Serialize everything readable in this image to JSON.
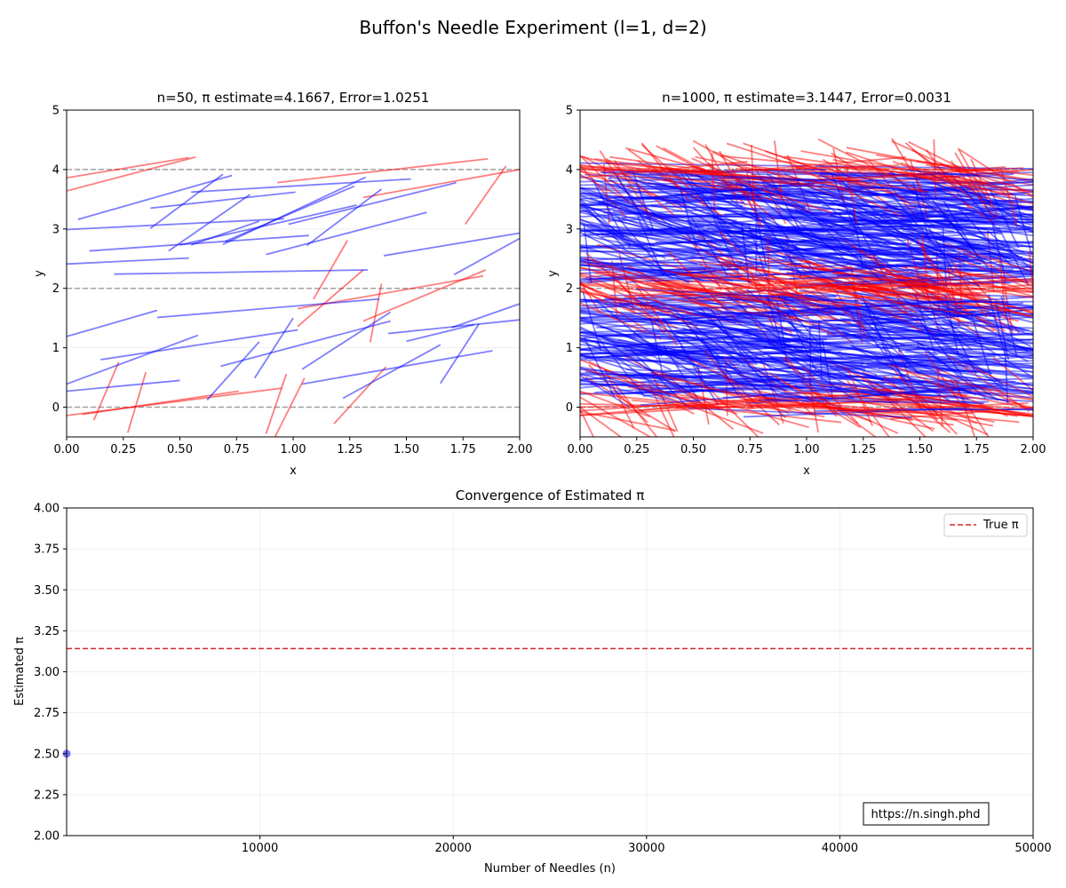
{
  "figure": {
    "title": "Buffon's Needle Experiment (l=1, d=2)"
  },
  "colors": {
    "crossing": "#ff0000",
    "non_crossing": "#0000ff",
    "grid_line": "#808080",
    "true_pi": "#d62728",
    "estimate_marker": "#6666ff"
  },
  "watermark": "https://n.singh.phd",
  "chart_data": [
    {
      "type": "line",
      "title": "n=50, π estimate=4.1667, Error=1.0251",
      "xlabel": "x",
      "ylabel": "y",
      "xlim": [
        0,
        2
      ],
      "ylim": [
        -0.5,
        5
      ],
      "xticks": [
        "0.00",
        "0.25",
        "0.50",
        "0.75",
        "1.00",
        "1.25",
        "1.50",
        "1.75",
        "2.00"
      ],
      "yticks": [
        "0",
        "1",
        "2",
        "3",
        "4",
        "5"
      ],
      "grid": true,
      "parallel_lines": [
        0,
        2,
        4
      ],
      "needle_length": 1,
      "needles": [
        [
          0.0,
          3.64,
          0.57,
          4.21
        ],
        [
          0.0,
          3.86,
          0.54,
          4.2
        ],
        [
          0.93,
          3.78,
          1.86,
          4.18
        ],
        [
          1.31,
          3.53,
          2.0,
          4.0
        ],
        [
          1.76,
          3.08,
          1.94,
          4.06
        ],
        [
          0.07,
          -0.12,
          0.76,
          0.27
        ],
        [
          0.12,
          -0.22,
          0.23,
          0.76
        ],
        [
          0.27,
          -0.43,
          0.35,
          0.59
        ],
        [
          0.0,
          -0.14,
          0.95,
          0.32
        ],
        [
          0.88,
          -0.45,
          0.97,
          0.56
        ],
        [
          0.92,
          -0.5,
          1.05,
          0.49
        ],
        [
          1.18,
          -0.28,
          1.41,
          0.68
        ],
        [
          1.09,
          1.82,
          1.24,
          2.81
        ],
        [
          1.02,
          1.36,
          1.31,
          2.31
        ],
        [
          1.34,
          1.09,
          1.39,
          2.08
        ],
        [
          1.02,
          1.66,
          1.84,
          2.21
        ],
        [
          1.31,
          1.45,
          1.85,
          2.31
        ],
        [
          0.05,
          3.16,
          0.73,
          3.9
        ],
        [
          0.37,
          3.35,
          1.01,
          3.62
        ],
        [
          0.55,
          3.62,
          1.52,
          3.84
        ],
        [
          0.37,
          3.01,
          0.69,
          3.92
        ],
        [
          0.45,
          2.63,
          0.81,
          3.58
        ],
        [
          0.0,
          2.99,
          0.96,
          3.17
        ],
        [
          0.69,
          2.74,
          1.32,
          3.87
        ],
        [
          0.7,
          2.79,
          1.27,
          3.72
        ],
        [
          1.06,
          2.72,
          1.39,
          3.67
        ],
        [
          0.98,
          3.08,
          1.72,
          3.78
        ],
        [
          0.55,
          2.73,
          0.85,
          3.13
        ],
        [
          0.5,
          2.73,
          1.28,
          3.4
        ],
        [
          0.1,
          2.63,
          1.07,
          2.89
        ],
        [
          0.0,
          2.41,
          0.54,
          2.51
        ],
        [
          0.88,
          2.57,
          1.59,
          3.28
        ],
        [
          1.4,
          2.55,
          2.0,
          2.93
        ],
        [
          1.71,
          2.23,
          2.0,
          2.84
        ],
        [
          0.21,
          2.24,
          1.33,
          2.31
        ],
        [
          0.0,
          1.19,
          0.4,
          1.63
        ],
        [
          0.4,
          1.51,
          1.38,
          1.82
        ],
        [
          0.15,
          0.8,
          1.02,
          1.3
        ],
        [
          0.0,
          0.39,
          0.58,
          1.21
        ],
        [
          0.0,
          0.27,
          0.5,
          0.45
        ],
        [
          0.68,
          0.69,
          1.43,
          1.45
        ],
        [
          1.04,
          0.64,
          1.43,
          1.6
        ],
        [
          1.42,
          1.24,
          2.0,
          1.47
        ],
        [
          1.5,
          1.11,
          1.8,
          1.39
        ],
        [
          1.65,
          0.4,
          1.82,
          1.4
        ],
        [
          1.7,
          1.34,
          2.0,
          1.74
        ],
        [
          0.83,
          0.49,
          1.0,
          1.5
        ],
        [
          0.62,
          0.12,
          0.85,
          1.1
        ],
        [
          1.04,
          0.39,
          1.88,
          0.95
        ],
        [
          1.22,
          0.15,
          1.65,
          1.05
        ]
      ]
    },
    {
      "type": "line",
      "title": "n=1000, π estimate=3.1447, Error=0.0031",
      "xlabel": "x",
      "ylabel": "y",
      "xlim": [
        0,
        2
      ],
      "ylim": [
        -0.5,
        5
      ],
      "xticks": [
        "0.00",
        "0.25",
        "0.50",
        "0.75",
        "1.00",
        "1.25",
        "1.50",
        "1.75",
        "2.00"
      ],
      "yticks": [
        "0",
        "1",
        "2",
        "3",
        "4",
        "5"
      ],
      "grid": true,
      "parallel_lines": [
        0,
        2,
        4
      ],
      "needle_length": 1,
      "simulated_needles": 1000,
      "x_range": [
        0,
        2
      ],
      "center_y_range": [
        -0.1,
        4.1
      ]
    },
    {
      "type": "line",
      "title": "Convergence of Estimated π",
      "xlabel": "Number of Needles (n)",
      "ylabel": "Estimated π",
      "xlim": [
        0,
        50000
      ],
      "ylim": [
        2.0,
        4.0
      ],
      "xticks": [
        "10000",
        "20000",
        "30000",
        "40000",
        "50000"
      ],
      "yticks": [
        "2.00",
        "2.25",
        "2.50",
        "2.75",
        "3.00",
        "3.25",
        "3.50",
        "3.75",
        "4.00"
      ],
      "grid": true,
      "legend_position": "top-right",
      "reference_line": {
        "name": "True π",
        "y": 3.14159
      },
      "series": [
        {
          "x": [
            0
          ],
          "y": [
            2.5
          ]
        }
      ]
    }
  ]
}
